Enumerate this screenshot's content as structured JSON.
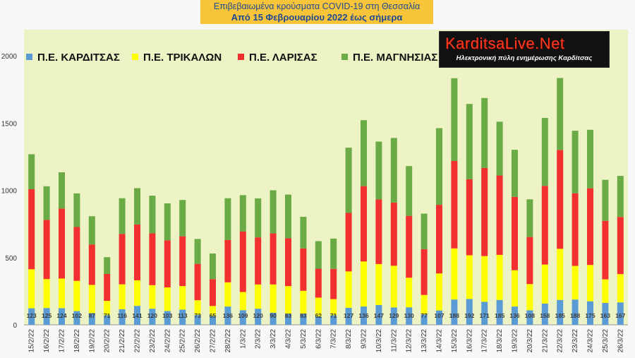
{
  "title": {
    "line1": "Επιβεβαιωμένα κρούσματα COVID-19 στη Θεσσαλία",
    "line2": "Από 15 Φεβρουαρίου 2022 έως σήμερα"
  },
  "logo": {
    "main": "KarditsaLive.Net",
    "sub": "Ηλεκτρονική πύλη ενημέρωσης Καρδίτσας"
  },
  "colors": {
    "karditsa": "#5b9bd5",
    "trikala": "#ffff00",
    "larisa": "#f23030",
    "magnisia": "#6aab46",
    "plot_bg": "#eef3c6"
  },
  "chart_data": {
    "type": "bar",
    "stacked": true,
    "ylim": [
      0,
      2000
    ],
    "yticks": [
      0,
      500,
      1000,
      1500,
      2000
    ],
    "grid": false,
    "legend_position": "top",
    "categories": [
      "15/2/22",
      "16/2/22",
      "17/2/22",
      "18/2/22",
      "19/2/22",
      "20/2/22",
      "21/2/22",
      "22/2/22",
      "23/2/22",
      "24/2/22",
      "25/2/22",
      "26/2/22",
      "27/2/22",
      "28/2/22",
      "1/3/22",
      "2/3/22",
      "3/3/22",
      "4/3/22",
      "5/3/22",
      "6/3/22",
      "7/3/22",
      "8/3/22",
      "9/3/22",
      "10/3/22",
      "11/3/22",
      "12/3/22",
      "13/3/22",
      "14/3/22",
      "15/3/22",
      "16/3/22",
      "17/3/22",
      "18/3/22",
      "19/3/22",
      "20/3/22",
      "21/3/22",
      "22/3/22",
      "23/3/22",
      "24/3/22",
      "25/3/22",
      "26/3/22"
    ],
    "series": [
      {
        "name": "Π.Ε. ΚΑΡΔΙΤΣΑΣ",
        "color_key": "karditsa",
        "values": [
          123,
          125,
          124,
          102,
          87,
          71,
          116,
          141,
          120,
          103,
          113,
          73,
          65,
          136,
          109,
          120,
          90,
          83,
          83,
          62,
          71,
          127,
          136,
          147,
          129,
          130,
          77,
          107,
          188,
          192,
          171,
          185,
          136,
          108,
          158,
          185,
          188,
          175,
          163,
          167
        ]
      },
      {
        "name": "Π.Ε. ΤΡΙΚΑΛΩΝ",
        "color_key": "trikala",
        "values": [
          290,
          215,
          220,
          225,
          210,
          107,
          185,
          190,
          175,
          175,
          175,
          110,
          75,
          180,
          135,
          180,
          210,
          205,
          170,
          140,
          120,
          270,
          335,
          305,
          310,
          220,
          145,
          275,
          380,
          325,
          340,
          335,
          270,
          195,
          290,
          380,
          250,
          270,
          175,
          210
        ]
      },
      {
        "name": "Π.Ε. ΛΑΡΙΣΑΣ",
        "color_key": "larisa",
        "values": [
          595,
          440,
          520,
          400,
          300,
          200,
          375,
          415,
          385,
          350,
          370,
          270,
          200,
          315,
          450,
          350,
          380,
          355,
          315,
          215,
          225,
          435,
          560,
          480,
          470,
          460,
          340,
          510,
          650,
          565,
          655,
          590,
          545,
          350,
          585,
          735,
          540,
          570,
          435,
          425
        ]
      },
      {
        "name": "Π.Ε. ΜΑΓΝΗΣΙΑΣ",
        "color_key": "magnisia",
        "values": [
          260,
          250,
          270,
          250,
          210,
          125,
          265,
          270,
          280,
          275,
          270,
          185,
          190,
          310,
          270,
          290,
          320,
          325,
          235,
          205,
          225,
          485,
          490,
          430,
          480,
          370,
          265,
          570,
          615,
          560,
          520,
          400,
          350,
          280,
          505,
          535,
          465,
          435,
          305,
          305
        ]
      }
    ],
    "data_labels_series": "Π.Ε. ΚΑΡΔΙΤΣΑΣ"
  }
}
